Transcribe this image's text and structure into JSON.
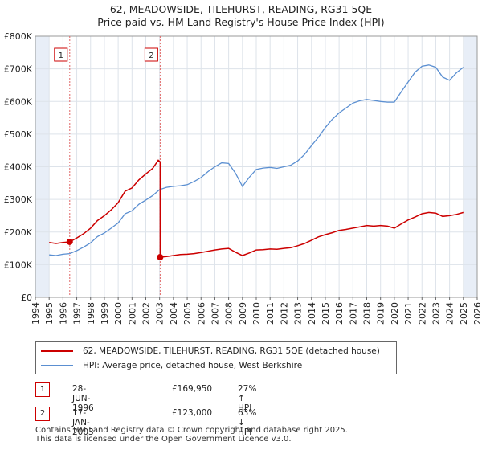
{
  "title_line1": "62, MEADOWSIDE, TILEHURST, READING, RG31 5QE",
  "title_line2": "Price paid vs. HM Land Registry's House Price Index (HPI)",
  "colors": {
    "property": "#cc0000",
    "hpi": "#5b8fd1",
    "grid": "#dde3ea",
    "shade": "#e8eef7"
  },
  "legend": {
    "property": "62, MEADOWSIDE, TILEHURST, READING, RG31 5QE (detached house)",
    "hpi": "HPI: Average price, detached house, West Berkshire"
  },
  "transactions": [
    {
      "num": "1",
      "date": "28-JUN-1996",
      "price": "£169,950",
      "hpi": "27% ↑ HPI"
    },
    {
      "num": "2",
      "date": "17-JAN-2003",
      "price": "£123,000",
      "hpi": "63% ↓ HPI"
    }
  ],
  "footer_line1": "Contains HM Land Registry data © Crown copyright and database right 2025.",
  "footer_line2": "This data is licensed under the Open Government Licence v3.0.",
  "chart_data": {
    "type": "line",
    "title": "62, MEADOWSIDE, TILEHURST, READING, RG31 5QE",
    "subtitle": "Price paid vs. HM Land Registry's House Price Index (HPI)",
    "xlabel": "",
    "ylabel": "",
    "xlim": [
      1994,
      2026
    ],
    "ylim": [
      0,
      800000
    ],
    "x_ticks": [
      "1994",
      "1995",
      "1996",
      "1997",
      "1998",
      "1999",
      "2000",
      "2001",
      "2002",
      "2003",
      "2004",
      "2005",
      "2006",
      "2007",
      "2008",
      "2009",
      "2010",
      "2011",
      "2012",
      "2013",
      "2014",
      "2015",
      "2016",
      "2017",
      "2018",
      "2019",
      "2020",
      "2021",
      "2022",
      "2023",
      "2024",
      "2025",
      "2026"
    ],
    "y_ticks": [
      {
        "value": 0,
        "label": "£0"
      },
      {
        "value": 100000,
        "label": "£100K"
      },
      {
        "value": 200000,
        "label": "£200K"
      },
      {
        "value": 300000,
        "label": "£300K"
      },
      {
        "value": 400000,
        "label": "£400K"
      },
      {
        "value": 500000,
        "label": "£500K"
      },
      {
        "value": 600000,
        "label": "£600K"
      },
      {
        "value": 700000,
        "label": "£700K"
      },
      {
        "value": 800000,
        "label": "£800K"
      }
    ],
    "shaded_ranges": [
      [
        1994,
        1995
      ],
      [
        2025.0,
        2026
      ]
    ],
    "series": [
      {
        "name": "62, MEADOWSIDE, TILEHURST, READING, RG31 5QE (detached house)",
        "x": [
          1995.0,
          1995.5,
          1996.0,
          1996.49,
          1997.0,
          1997.5,
          1998.0,
          1998.5,
          1999.0,
          1999.5,
          2000.0,
          2000.5,
          2001.0,
          2001.5,
          2002.0,
          2002.5,
          2002.9,
          2003.04,
          2003.04,
          2003.5,
          2004.0,
          2004.5,
          2005.0,
          2005.5,
          2006.0,
          2006.5,
          2007.0,
          2007.5,
          2008.0,
          2008.5,
          2009.0,
          2009.5,
          2010.0,
          2010.5,
          2011.0,
          2011.5,
          2012.0,
          2012.5,
          2013.0,
          2013.5,
          2014.0,
          2014.5,
          2015.0,
          2015.5,
          2016.0,
          2016.5,
          2017.0,
          2017.5,
          2018.0,
          2018.5,
          2019.0,
          2019.5,
          2020.0,
          2020.5,
          2021.0,
          2021.5,
          2022.0,
          2022.5,
          2023.0,
          2023.5,
          2024.0,
          2024.5,
          2025.0
        ],
        "values": [
          168000,
          165000,
          168000,
          169950,
          182000,
          195000,
          212000,
          235000,
          250000,
          268000,
          290000,
          325000,
          335000,
          360000,
          378000,
          395000,
          420000,
          415000,
          123000,
          125000,
          128000,
          131000,
          132000,
          134000,
          137000,
          141000,
          145000,
          148000,
          150000,
          138000,
          128000,
          136000,
          145000,
          146000,
          148000,
          147000,
          150000,
          152000,
          158000,
          165000,
          175000,
          185000,
          192000,
          198000,
          205000,
          208000,
          212000,
          216000,
          220000,
          218000,
          220000,
          218000,
          212000,
          225000,
          237000,
          246000,
          256000,
          260000,
          258000,
          248000,
          250000,
          254000,
          260000
        ]
      },
      {
        "name": "HPI: Average price, detached house, West Berkshire",
        "x": [
          1995.0,
          1995.5,
          1996.0,
          1996.49,
          1997.0,
          1997.5,
          1998.0,
          1998.5,
          1999.0,
          1999.5,
          2000.0,
          2000.5,
          2001.0,
          2001.5,
          2002.0,
          2002.5,
          2003.0,
          2003.5,
          2004.0,
          2004.5,
          2005.0,
          2005.5,
          2006.0,
          2006.5,
          2007.0,
          2007.5,
          2008.0,
          2008.5,
          2009.0,
          2009.5,
          2010.0,
          2010.5,
          2011.0,
          2011.5,
          2012.0,
          2012.5,
          2013.0,
          2013.5,
          2014.0,
          2014.5,
          2015.0,
          2015.5,
          2016.0,
          2016.5,
          2017.0,
          2017.5,
          2018.0,
          2018.5,
          2019.0,
          2019.5,
          2020.0,
          2020.5,
          2021.0,
          2021.5,
          2022.0,
          2022.5,
          2023.0,
          2023.5,
          2024.0,
          2024.5,
          2025.0
        ],
        "values": [
          130000,
          128000,
          132000,
          134000,
          143000,
          154000,
          167000,
          186000,
          197000,
          212000,
          228000,
          256000,
          265000,
          285000,
          298000,
          312000,
          330000,
          337000,
          340000,
          342000,
          345000,
          355000,
          367000,
          385000,
          400000,
          412000,
          410000,
          380000,
          340000,
          368000,
          392000,
          396000,
          398000,
          395000,
          400000,
          405000,
          418000,
          438000,
          465000,
          490000,
          520000,
          545000,
          565000,
          580000,
          595000,
          602000,
          606000,
          603000,
          600000,
          598000,
          598000,
          630000,
          660000,
          690000,
          708000,
          712000,
          705000,
          675000,
          665000,
          688000,
          705000
        ]
      }
    ],
    "sales": [
      {
        "label": "1",
        "x": 1996.49,
        "value": 169950
      },
      {
        "label": "2",
        "x": 2003.04,
        "value": 123000
      }
    ]
  }
}
